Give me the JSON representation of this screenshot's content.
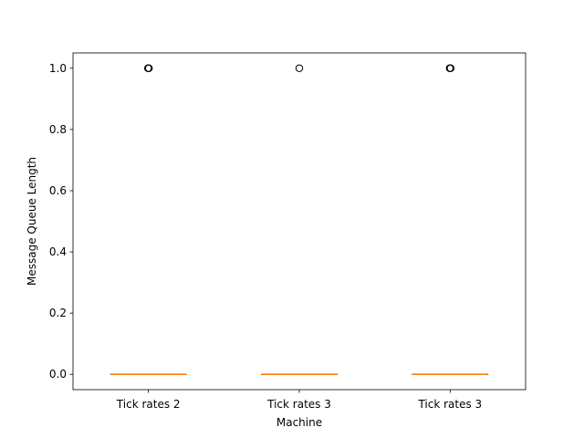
{
  "chart_data": {
    "type": "box",
    "title": "",
    "xlabel": "Machine",
    "ylabel": "Message Queue Length",
    "ylim": [
      -0.05,
      1.05
    ],
    "yticks": [
      0.0,
      0.2,
      0.4,
      0.6,
      0.8,
      1.0
    ],
    "ytick_labels": [
      "0.0",
      "0.2",
      "0.4",
      "0.6",
      "0.8",
      "1.0"
    ],
    "grid": false,
    "categories": [
      "Tick rates 2",
      "Tick rates 3",
      "Tick rates 3"
    ],
    "boxes": [
      {
        "q1": 0,
        "median": 0,
        "q3": 0,
        "whisker_low": 0,
        "whisker_high": 0,
        "outliers": [
          1,
          1,
          1
        ]
      },
      {
        "q1": 0,
        "median": 0,
        "q3": 0,
        "whisker_low": 0,
        "whisker_high": 0,
        "outliers": [
          1
        ]
      },
      {
        "q1": 0,
        "median": 0,
        "q3": 0,
        "whisker_low": 0,
        "whisker_high": 0,
        "outliers": [
          1,
          1,
          1
        ]
      }
    ],
    "colors": {
      "box": "#000000",
      "median": "#ff7f0e",
      "outlier": "#000000"
    }
  }
}
